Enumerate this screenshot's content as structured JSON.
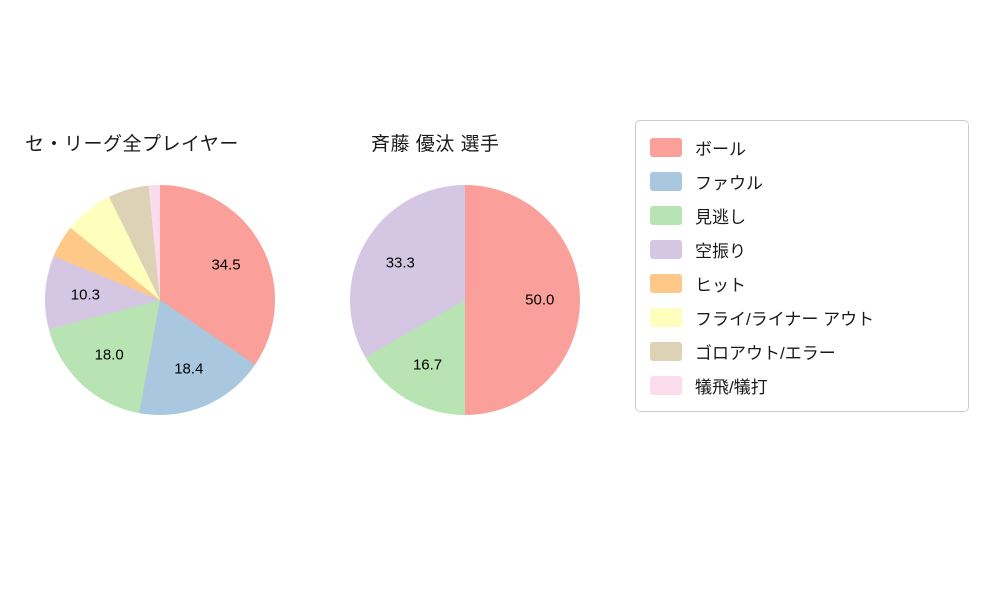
{
  "chart_data": [
    {
      "type": "pie",
      "title": "セ・リーグ全プレイヤー",
      "start_angle_deg": 0,
      "direction": "clockwise",
      "label_radius": 0.65,
      "slices": [
        {
          "name": "ボール",
          "value": 34.5,
          "color": "#fa9f99",
          "show_label": true
        },
        {
          "name": "ファウル",
          "value": 18.4,
          "color": "#a9c8e0",
          "show_label": true
        },
        {
          "name": "見逃し",
          "value": 18.0,
          "color": "#b8e3b2",
          "show_label": true
        },
        {
          "name": "空振り",
          "value": 10.3,
          "color": "#d5c6e4",
          "show_label": true
        },
        {
          "name": "ヒット",
          "value": 4.6,
          "color": "#fdc888",
          "show_label": false
        },
        {
          "name": "フライ/ライナー アウト",
          "value": 6.9,
          "color": "#ffffbd",
          "show_label": false
        },
        {
          "name": "ゴロアウト/エラー",
          "value": 5.7,
          "color": "#ddd2b5",
          "show_label": false
        },
        {
          "name": "犠飛/犠打",
          "value": 1.6,
          "color": "#fbdcec",
          "show_label": false
        }
      ]
    },
    {
      "type": "pie",
      "title": "斉藤 優汰  選手",
      "start_angle_deg": 0,
      "direction": "clockwise",
      "label_radius": 0.65,
      "slices": [
        {
          "name": "ボール",
          "value": 50.0,
          "color": "#fa9f99",
          "show_label": true
        },
        {
          "name": "見逃し",
          "value": 16.7,
          "color": "#b8e3b2",
          "show_label": true
        },
        {
          "name": "空振り",
          "value": 33.3,
          "color": "#d5c6e4",
          "show_label": true
        }
      ]
    }
  ],
  "legend": {
    "items": [
      {
        "label": "ボール",
        "color": "#fa9f99"
      },
      {
        "label": "ファウル",
        "color": "#a9c8e0"
      },
      {
        "label": "見逃し",
        "color": "#b8e3b2"
      },
      {
        "label": "空振り",
        "color": "#d5c6e4"
      },
      {
        "label": "ヒット",
        "color": "#fdc888"
      },
      {
        "label": "フライ/ライナー アウト",
        "color": "#ffffbd"
      },
      {
        "label": "ゴロアウト/エラー",
        "color": "#ddd2b5"
      },
      {
        "label": "犠飛/犠打",
        "color": "#fbdcec"
      }
    ]
  }
}
